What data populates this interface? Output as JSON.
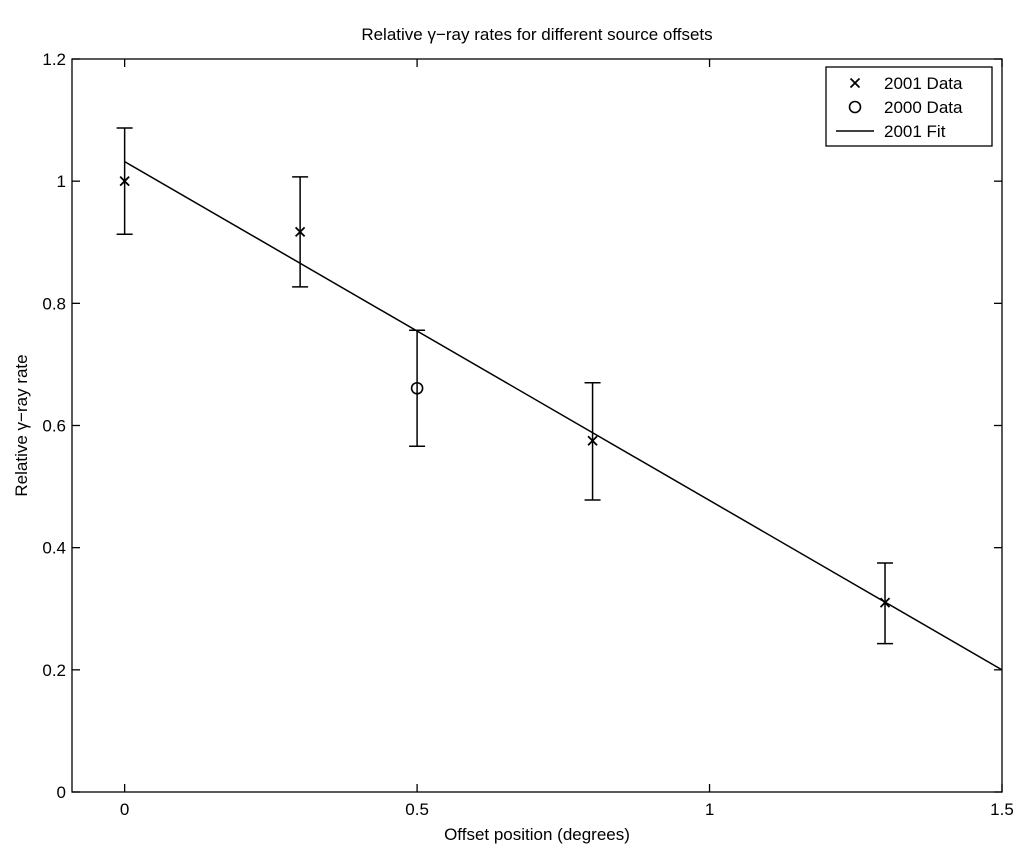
{
  "chart_data": {
    "type": "scatter",
    "title": "Relative γ−ray rates for different source offsets",
    "xlabel": "Offset position (degrees)",
    "ylabel": "Relative γ−ray rate",
    "xlim": [
      -0.09,
      1.5
    ],
    "ylim": [
      0,
      1.2
    ],
    "xticks": [
      0,
      0.5,
      1,
      1.5
    ],
    "xtick_labels": [
      "0",
      "0.5",
      "1",
      "1.5"
    ],
    "yticks": [
      0,
      0.2,
      0.4,
      0.6,
      0.8,
      1,
      1.2
    ],
    "ytick_labels": [
      "0",
      "0.2",
      "0.4",
      "0.6",
      "0.8",
      "1",
      "1.2"
    ],
    "grid": false,
    "legend_position": "top-right",
    "series": [
      {
        "name": "2001 Data",
        "marker": "x",
        "points": [
          {
            "x": 0,
            "y": 1.0,
            "err_low": 0.913,
            "err_high": 1.087
          },
          {
            "x": 0.3,
            "y": 0.917,
            "err_low": 0.827,
            "err_high": 1.007
          },
          {
            "x": 0.8,
            "y": 0.575,
            "err_low": 0.478,
            "err_high": 0.67
          },
          {
            "x": 1.3,
            "y": 0.31,
            "err_low": 0.243,
            "err_high": 0.375
          }
        ]
      },
      {
        "name": "2000 Data",
        "marker": "o",
        "points": [
          {
            "x": 0.5,
            "y": 0.661,
            "err_low": 0.566,
            "err_high": 0.756
          }
        ]
      },
      {
        "name": "2001 Fit",
        "marker": "line",
        "points": [
          {
            "x": 0,
            "y": 1.032
          },
          {
            "x": 1.5,
            "y": 0.2
          }
        ]
      }
    ]
  }
}
